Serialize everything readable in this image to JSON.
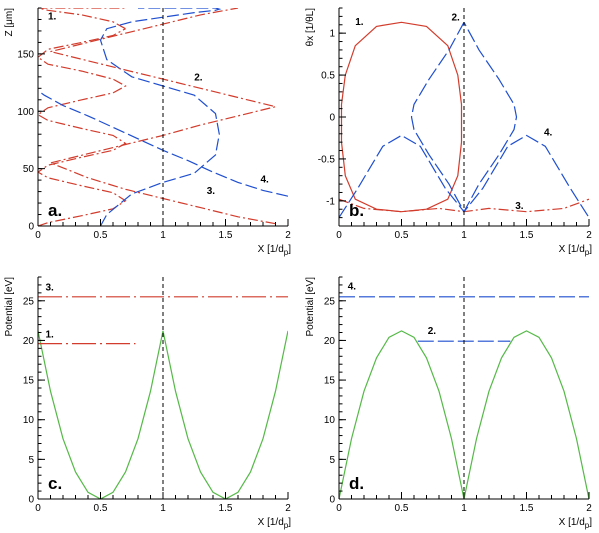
{
  "colors": {
    "red": "#d23c2c",
    "blue": "#1f4fd0",
    "green": "#55b947",
    "black": "#000000"
  },
  "chart_data": [
    {
      "id": "a",
      "type": "line",
      "panel_label": "a.",
      "xlabel": "X [1/d",
      "xlabel_sub": "p",
      "xlabel_end": "]",
      "ylabel": "Z [μm]",
      "xlim": [
        0,
        2
      ],
      "ylim": [
        0,
        190
      ],
      "xticks": [
        {
          "v": 0,
          "t": "0"
        },
        {
          "v": 0.5,
          "t": "0.5"
        },
        {
          "v": 1,
          "t": "1"
        },
        {
          "v": 1.5,
          "t": "1.5"
        },
        {
          "v": 2,
          "t": "2"
        }
      ],
      "yticks": [
        {
          "v": 0,
          "t": "0"
        },
        {
          "v": 50,
          "t": "50"
        },
        {
          "v": 100,
          "t": "100"
        },
        {
          "v": 150,
          "t": "150"
        }
      ],
      "vline_x": 1,
      "curve_labels": [
        {
          "text": "1.",
          "x": 0.08,
          "y": 180
        },
        {
          "text": "2.",
          "x": 1.25,
          "y": 127
        },
        {
          "text": "3.",
          "x": 1.35,
          "y": 28
        },
        {
          "text": "4.",
          "x": 1.78,
          "y": 38
        }
      ],
      "series": [
        {
          "id": "1",
          "color": "red",
          "dash": "10,3,2,3",
          "x": [
            0.0,
            0.08,
            0.35,
            0.6,
            0.7,
            0.6,
            0.35,
            0.08,
            0.0,
            0.08,
            0.35,
            0.6,
            0.7,
            0.6,
            0.35,
            0.08,
            0.0,
            0.08,
            0.35,
            0.6,
            0.7,
            0.6,
            0.35,
            0.08,
            0.0,
            0.08,
            0.35,
            0.6,
            0.7
          ],
          "y": [
            0,
            3,
            9,
            15,
            22,
            29,
            35,
            42,
            47,
            53,
            60,
            66,
            72,
            79,
            85,
            92,
            97,
            103,
            110,
            116,
            122,
            128,
            135,
            141,
            147,
            154,
            160,
            166,
            172
          ]
        },
        {
          "id": "1b",
          "color": "red",
          "dash": "10,3,2,3",
          "x": [
            0.7,
            0.6,
            0.35,
            0.08,
            0.0,
            0.08,
            0.35,
            0.6,
            0.7
          ],
          "y": [
            172,
            178,
            184,
            188,
            190,
            190,
            190,
            190,
            190
          ]
        },
        {
          "id": "2",
          "color": "blue",
          "dash": "12,4",
          "x": [
            0.5,
            0.55,
            0.75,
            1.0,
            1.25,
            1.42,
            1.45,
            1.42,
            1.25,
            1.0,
            0.75,
            0.55,
            0.5,
            0.55,
            0.75,
            1.0,
            1.25,
            1.42,
            1.45,
            1.42,
            1.25,
            1.0,
            0.8
          ],
          "y": [
            0,
            10,
            28,
            38,
            46,
            62,
            80,
            98,
            114,
            122,
            130,
            145,
            162,
            172,
            178,
            182,
            186,
            188,
            189,
            190,
            190,
            190,
            190
          ]
        },
        {
          "id": "3",
          "color": "red",
          "dash": "10,3,2,3",
          "x": [
            1.9,
            1.6,
            1.3,
            1.0,
            0.7,
            0.4,
            0.1,
            0.4,
            0.7,
            1.0,
            1.3,
            1.6,
            1.9,
            1.6,
            1.3,
            1.0,
            0.7,
            0.4,
            0.1,
            0.4,
            0.7,
            1.0,
            1.3,
            1.6
          ],
          "y": [
            2,
            8,
            16,
            24,
            32,
            42,
            55,
            63,
            71,
            79,
            88,
            96,
            104,
            112,
            120,
            128,
            136,
            144,
            152,
            160,
            168,
            176,
            184,
            190
          ]
        },
        {
          "id": "4",
          "color": "blue",
          "dash": "12,4",
          "x": [
            2.0,
            1.8,
            1.6,
            1.4,
            1.2,
            1.0,
            0.8,
            0.6,
            0.4,
            0.2,
            0.05,
            0.0
          ],
          "y": [
            26,
            31,
            38,
            47,
            57,
            66,
            76,
            86,
            96,
            105,
            114,
            118
          ]
        }
      ]
    },
    {
      "id": "b",
      "type": "line",
      "panel_label": "b.",
      "xlabel": "X [1/d",
      "xlabel_sub": "p",
      "xlabel_end": "]",
      "ylabel": "θx [1/θL]",
      "xlim": [
        0,
        2
      ],
      "ylim": [
        -1.3,
        1.3
      ],
      "xticks": [
        {
          "v": 0,
          "t": "0"
        },
        {
          "v": 0.5,
          "t": "0.5"
        },
        {
          "v": 1,
          "t": "1"
        },
        {
          "v": 1.5,
          "t": "1.5"
        },
        {
          "v": 2,
          "t": "2"
        }
      ],
      "yticks": [
        {
          "v": -1,
          "t": "-1"
        },
        {
          "v": -0.5,
          "t": "-0.5"
        },
        {
          "v": 0,
          "t": "0"
        },
        {
          "v": 0.5,
          "t": "0.5"
        },
        {
          "v": 1,
          "t": "1"
        }
      ],
      "vline_x": 1,
      "curve_labels": [
        {
          "text": "1.",
          "x": 0.13,
          "y": 1.1
        },
        {
          "text": "2.",
          "x": 0.9,
          "y": 1.15
        },
        {
          "text": "3.",
          "x": 1.41,
          "y": -1.1
        },
        {
          "text": "4.",
          "x": 1.64,
          "y": -0.22
        }
      ],
      "series": [
        {
          "id": "1",
          "color": "red",
          "dash": "",
          "closed": true,
          "x": [
            0.5,
            0.3,
            0.13,
            0.05,
            0.02,
            0.02,
            0.05,
            0.13,
            0.3,
            0.5,
            0.7,
            0.87,
            0.95,
            0.98,
            0.98,
            0.95,
            0.87,
            0.7,
            0.5
          ],
          "y": [
            1.13,
            1.08,
            0.85,
            0.5,
            0.15,
            -0.3,
            -0.7,
            -0.98,
            -1.1,
            -1.13,
            -1.1,
            -0.98,
            -0.7,
            -0.3,
            0.15,
            0.5,
            0.85,
            1.08,
            1.13
          ]
        },
        {
          "id": "2",
          "color": "blue",
          "dash": "14,4",
          "x": [
            1.0,
            0.88,
            0.72,
            0.6,
            0.58,
            0.6,
            0.72,
            0.88,
            1.0,
            1.12,
            1.28,
            1.4,
            1.42,
            1.4,
            1.28,
            1.12,
            1.0
          ],
          "y": [
            1.13,
            0.8,
            0.45,
            0.15,
            0.0,
            -0.15,
            -0.45,
            -0.8,
            -1.13,
            -0.8,
            -0.45,
            -0.15,
            0.0,
            0.15,
            0.45,
            0.8,
            1.13
          ]
        },
        {
          "id": "3",
          "color": "red",
          "dash": "10,3,2,3",
          "x": [
            0.0,
            0.2,
            0.5,
            0.8,
            1.0,
            1.2,
            1.5,
            1.8,
            2.0
          ],
          "y": [
            -0.98,
            -1.09,
            -1.13,
            -1.09,
            -1.13,
            -1.09,
            -1.13,
            -1.09,
            -0.98
          ]
        },
        {
          "id": "4",
          "color": "blue",
          "dash": "14,4",
          "x": [
            0.0,
            0.15,
            0.35,
            0.5,
            0.65,
            0.85,
            1.0,
            1.15,
            1.35,
            1.5,
            1.65,
            1.85,
            2.0
          ],
          "y": [
            -1.2,
            -0.85,
            -0.35,
            -0.22,
            -0.35,
            -0.85,
            -1.13,
            -0.85,
            -0.35,
            -0.22,
            -0.35,
            -0.85,
            -1.2
          ]
        }
      ]
    },
    {
      "id": "c",
      "type": "line",
      "panel_label": "c.",
      "xlabel": "X [1/d",
      "xlabel_sub": "p",
      "xlabel_end": "]",
      "ylabel": "Potential [eV]",
      "xlim": [
        0,
        2
      ],
      "ylim": [
        0,
        28
      ],
      "xticks": [
        {
          "v": 0,
          "t": "0"
        },
        {
          "v": 0.5,
          "t": "0.5"
        },
        {
          "v": 1,
          "t": "1"
        },
        {
          "v": 1.5,
          "t": "1.5"
        },
        {
          "v": 2,
          "t": "2"
        }
      ],
      "yticks": [
        {
          "v": 0,
          "t": "0"
        },
        {
          "v": 5,
          "t": "5"
        },
        {
          "v": 10,
          "t": "10"
        },
        {
          "v": 15,
          "t": "15"
        },
        {
          "v": 20,
          "t": "20"
        },
        {
          "v": 25,
          "t": "25"
        }
      ],
      "vline_x": 1,
      "curve_labels": [
        {
          "text": "3.",
          "x": 0.06,
          "y": 26.3
        },
        {
          "text": "1.",
          "x": 0.06,
          "y": 20.4
        }
      ],
      "series": [
        {
          "id": "potential",
          "color": "green",
          "dash": "",
          "x": [
            0.0,
            0.1,
            0.2,
            0.3,
            0.4,
            0.5,
            0.6,
            0.7,
            0.8,
            0.9,
            1.0,
            1.1,
            1.2,
            1.3,
            1.4,
            1.5,
            1.6,
            1.7,
            1.8,
            1.9,
            2.0
          ],
          "y": [
            21.2,
            13.6,
            7.6,
            3.4,
            0.85,
            0.0,
            0.85,
            3.4,
            7.6,
            13.6,
            21.2,
            13.6,
            7.6,
            3.4,
            0.85,
            0.0,
            0.85,
            3.4,
            7.6,
            13.6,
            21.2
          ]
        },
        {
          "id": "1",
          "color": "red",
          "dash": "24,4,2,4",
          "x": [
            0.0,
            0.78
          ],
          "y": [
            19.6,
            19.6
          ]
        },
        {
          "id": "3",
          "color": "red",
          "dash": "24,4,2,4",
          "x": [
            0.0,
            2.0
          ],
          "y": [
            25.5,
            25.5
          ]
        }
      ]
    },
    {
      "id": "d",
      "type": "line",
      "panel_label": "d.",
      "xlabel": "X [1/d",
      "xlabel_sub": "p",
      "xlabel_end": "]",
      "ylabel": "Potential [eV]",
      "xlim": [
        0,
        2
      ],
      "ylim": [
        0,
        28
      ],
      "xticks": [
        {
          "v": 0,
          "t": "0"
        },
        {
          "v": 0.5,
          "t": "0.5"
        },
        {
          "v": 1,
          "t": "1"
        },
        {
          "v": 1.5,
          "t": "1.5"
        },
        {
          "v": 2,
          "t": "2"
        }
      ],
      "yticks": [
        {
          "v": 0,
          "t": "0"
        },
        {
          "v": 5,
          "t": "5"
        },
        {
          "v": 10,
          "t": "10"
        },
        {
          "v": 15,
          "t": "15"
        },
        {
          "v": 20,
          "t": "20"
        },
        {
          "v": 25,
          "t": "25"
        }
      ],
      "vline_x": 1,
      "curve_labels": [
        {
          "text": "4.",
          "x": 0.07,
          "y": 26.4
        },
        {
          "text": "2.",
          "x": 0.71,
          "y": 20.8
        }
      ],
      "series": [
        {
          "id": "potential",
          "color": "green",
          "dash": "",
          "x": [
            0.0,
            0.1,
            0.2,
            0.3,
            0.4,
            0.5,
            0.6,
            0.7,
            0.8,
            0.9,
            1.0,
            1.1,
            1.2,
            1.3,
            1.4,
            1.5,
            1.6,
            1.7,
            1.8,
            1.9,
            2.0
          ],
          "y": [
            0.0,
            7.6,
            13.6,
            17.8,
            20.4,
            21.2,
            20.4,
            17.8,
            13.6,
            7.6,
            0.0,
            7.6,
            13.6,
            17.8,
            20.4,
            21.2,
            20.4,
            17.8,
            13.6,
            7.6,
            0.0
          ]
        },
        {
          "id": "2",
          "color": "blue",
          "dash": "16,4",
          "x": [
            0.63,
            1.37
          ],
          "y": [
            19.9,
            19.9
          ]
        },
        {
          "id": "4",
          "color": "blue",
          "dash": "16,4",
          "x": [
            0.0,
            2.0
          ],
          "y": [
            25.5,
            25.5
          ]
        }
      ]
    }
  ]
}
